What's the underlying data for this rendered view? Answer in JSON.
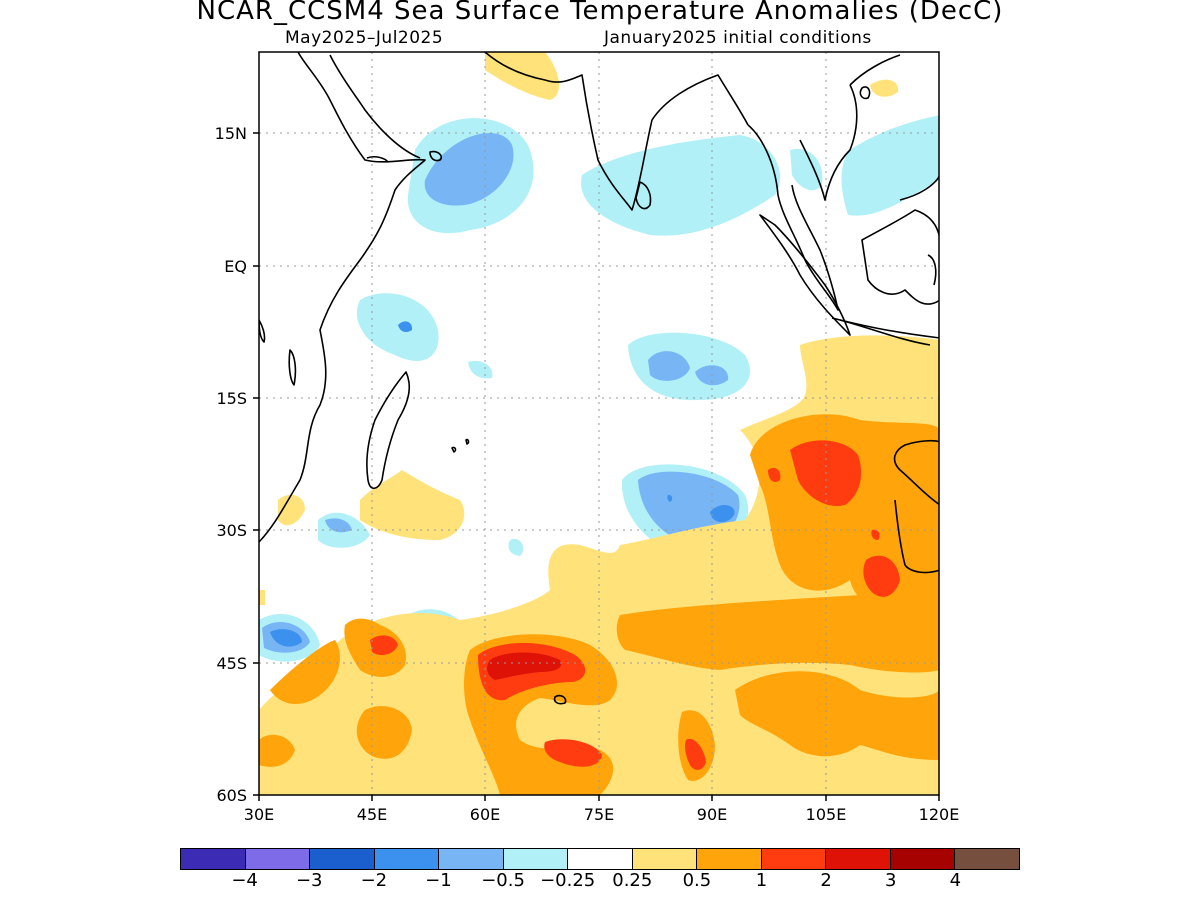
{
  "header": {
    "title": "NCAR_CCSM4 Sea Surface Temperature Anomalies (DecC)",
    "period": "May2025–Jul2025",
    "init": "January2025 initial conditions"
  },
  "axes": {
    "lat_labels": [
      "15N",
      "EQ",
      "15S",
      "30S",
      "45S",
      "60S"
    ],
    "lon_labels": [
      "30E",
      "45E",
      "60E",
      "75E",
      "90E",
      "105E",
      "120E"
    ]
  },
  "legend": {
    "colors": [
      "#3b2bb5",
      "#7e6be8",
      "#1b5fcf",
      "#3c90ee",
      "#78b5f5",
      "#b1f0f7",
      "#ffffff",
      "#ffe37a",
      "#ffa40a",
      "#ff3b10",
      "#df1208",
      "#a60202",
      "#774f3f"
    ],
    "labels": [
      "−4",
      "−3",
      "−2",
      "−1",
      "−0.5",
      "−0.25",
      "0.25",
      "0.5",
      "1",
      "2",
      "3",
      "4"
    ]
  },
  "colors": {
    "neg_025": "#b1f0f7",
    "neg_05": "#78b5f5",
    "neg_1": "#3c90ee",
    "neg_2": "#1b5fcf",
    "pos_025": "#ffe37a",
    "pos_05": "#ffa40a",
    "pos_1": "#ff3b10",
    "pos_2": "#df1208"
  }
}
